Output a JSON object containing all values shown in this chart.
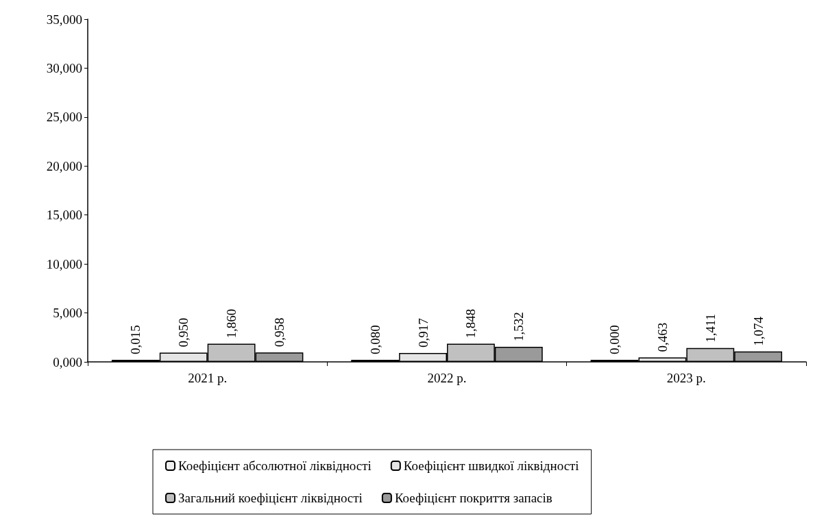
{
  "chart_data": {
    "type": "bar",
    "categories": [
      "2021 р.",
      "2022 р.",
      "2023 р."
    ],
    "series": [
      {
        "name": "Коефіцієнт абсолютної ліквідності",
        "color": "#f0f0f0",
        "values": [
          0.015,
          0.08,
          0.0
        ],
        "value_labels": [
          "0,015",
          "0,080",
          "0,000"
        ]
      },
      {
        "name": "Коефіцієнт швидкої ліквідності",
        "color": "#e4e4e4",
        "values": [
          0.95,
          0.917,
          0.463
        ],
        "value_labels": [
          "0,950",
          "0,917",
          "0,463"
        ]
      },
      {
        "name": "Загальний коефіцієнт ліквідності",
        "color": "#c0c0c0",
        "values": [
          1.86,
          1.848,
          1.411
        ],
        "value_labels": [
          "1,860",
          "1,848",
          "1,411"
        ]
      },
      {
        "name": "Коефіцієнт покриття запасів",
        "color": "#9a9a9a",
        "values": [
          0.958,
          1.532,
          1.074
        ],
        "value_labels": [
          "0,958",
          "1,532",
          "1,074"
        ]
      }
    ],
    "ylim": [
      0,
      35
    ],
    "yticks": [
      {
        "value": 0,
        "label": "0,000"
      },
      {
        "value": 5,
        "label": "5,000"
      },
      {
        "value": 10,
        "label": "10,000"
      },
      {
        "value": 15,
        "label": "15,000"
      },
      {
        "value": 20,
        "label": "20,000"
      },
      {
        "value": 25,
        "label": "25,000"
      },
      {
        "value": 30,
        "label": "30,000"
      },
      {
        "value": 35,
        "label": "35,000"
      }
    ],
    "grid": false,
    "legend": "bottom"
  }
}
